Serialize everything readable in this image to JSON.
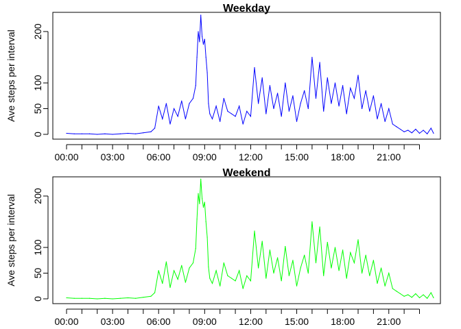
{
  "chart_data": [
    {
      "type": "line",
      "title": "Weekday",
      "xlabel": "",
      "ylabel": "Ave steps per interval",
      "x_tick_labels": [
        "00:00",
        "03:00",
        "06:00",
        "09:00",
        "12:00",
        "15:00",
        "18:00",
        "21:00"
      ],
      "x_tick_minutes": [
        0,
        180,
        360,
        540,
        720,
        900,
        1080,
        1260
      ],
      "x_range_minutes": [
        0,
        1435
      ],
      "y_ticks": [
        0,
        50,
        100,
        200
      ],
      "ylim": [
        0,
        228
      ],
      "color": "#0000ff",
      "series": [
        {
          "x_minutes": [
            0,
            30,
            60,
            90,
            120,
            150,
            180,
            210,
            240,
            270,
            300,
            330,
            345,
            360,
            375,
            390,
            405,
            420,
            435,
            450,
            465,
            480,
            495,
            505,
            510,
            515,
            520,
            525,
            530,
            535,
            540,
            545,
            550,
            555,
            560,
            570,
            585,
            600,
            615,
            630,
            645,
            660,
            675,
            690,
            705,
            720,
            735,
            750,
            765,
            780,
            795,
            810,
            825,
            840,
            855,
            870,
            885,
            900,
            915,
            930,
            945,
            960,
            975,
            990,
            1005,
            1020,
            1035,
            1050,
            1065,
            1080,
            1095,
            1110,
            1125,
            1140,
            1155,
            1170,
            1185,
            1200,
            1215,
            1230,
            1245,
            1260,
            1275,
            1290,
            1305,
            1320,
            1335,
            1350,
            1365,
            1380,
            1395,
            1410,
            1425,
            1435
          ],
          "values": [
            2,
            1,
            1,
            1,
            0,
            1,
            0,
            1,
            2,
            1,
            3,
            5,
            12,
            55,
            30,
            60,
            20,
            50,
            35,
            65,
            30,
            60,
            70,
            95,
            150,
            200,
            180,
            232,
            190,
            175,
            185,
            150,
            120,
            60,
            40,
            30,
            55,
            25,
            70,
            45,
            40,
            35,
            55,
            20,
            45,
            35,
            130,
            60,
            110,
            40,
            95,
            50,
            80,
            35,
            100,
            45,
            75,
            25,
            60,
            85,
            50,
            150,
            70,
            140,
            45,
            110,
            60,
            100,
            55,
            95,
            40,
            90,
            70,
            115,
            50,
            85,
            45,
            75,
            30,
            60,
            25,
            50,
            20,
            15,
            10,
            5,
            8,
            3,
            10,
            2,
            8,
            1,
            12,
            2
          ]
        }
      ]
    },
    {
      "type": "line",
      "title": "Weekend",
      "xlabel": "",
      "ylabel": "Ave steps per interval",
      "x_tick_labels": [
        "00:00",
        "03:00",
        "06:00",
        "09:00",
        "12:00",
        "15:00",
        "18:00",
        "21:00"
      ],
      "x_tick_minutes": [
        0,
        180,
        360,
        540,
        720,
        900,
        1080,
        1260
      ],
      "x_range_minutes": [
        0,
        1435
      ],
      "y_ticks": [
        0,
        50,
        100,
        200
      ],
      "ylim": [
        0,
        228
      ],
      "color": "#00ff00",
      "series": [
        {
          "x_minutes": [
            0,
            30,
            60,
            90,
            120,
            150,
            180,
            210,
            240,
            270,
            300,
            330,
            345,
            360,
            375,
            390,
            405,
            420,
            435,
            450,
            465,
            480,
            495,
            505,
            510,
            515,
            520,
            525,
            530,
            535,
            540,
            545,
            550,
            555,
            560,
            570,
            585,
            600,
            615,
            630,
            645,
            660,
            675,
            690,
            705,
            720,
            735,
            750,
            765,
            780,
            795,
            810,
            825,
            840,
            855,
            870,
            885,
            900,
            915,
            930,
            945,
            960,
            975,
            990,
            1005,
            1020,
            1035,
            1050,
            1065,
            1080,
            1095,
            1110,
            1125,
            1140,
            1155,
            1170,
            1185,
            1200,
            1215,
            1230,
            1245,
            1260,
            1275,
            1290,
            1305,
            1320,
            1335,
            1350,
            1365,
            1380,
            1395,
            1410,
            1425,
            1435
          ],
          "values": [
            2,
            1,
            1,
            1,
            0,
            1,
            0,
            1,
            2,
            1,
            3,
            5,
            12,
            55,
            30,
            72,
            22,
            55,
            38,
            65,
            32,
            60,
            70,
            98,
            155,
            205,
            185,
            233,
            195,
            178,
            188,
            150,
            120,
            62,
            40,
            30,
            55,
            25,
            70,
            45,
            40,
            35,
            55,
            20,
            45,
            35,
            132,
            60,
            112,
            40,
            95,
            50,
            80,
            35,
            102,
            45,
            75,
            25,
            60,
            85,
            50,
            150,
            70,
            140,
            45,
            110,
            60,
            100,
            55,
            95,
            40,
            90,
            70,
            115,
            50,
            85,
            45,
            75,
            30,
            60,
            25,
            50,
            20,
            15,
            10,
            5,
            8,
            3,
            10,
            2,
            8,
            1,
            12,
            2
          ]
        }
      ]
    }
  ]
}
